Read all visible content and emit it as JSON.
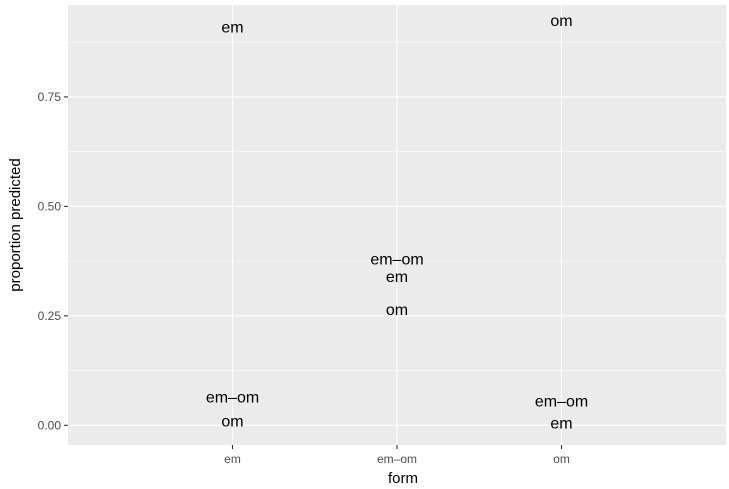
{
  "chart_data": {
    "type": "scatter",
    "xlabel": "form",
    "ylabel": "proportion predicted",
    "categories": [
      "em",
      "em–om",
      "om"
    ],
    "y_ticks": [
      0.0,
      0.25,
      0.5,
      0.75
    ],
    "y_tick_labels": [
      "0.00",
      "0.25",
      "0.50",
      "0.75"
    ],
    "ylim": [
      -0.045,
      0.96
    ],
    "grid": true,
    "points": [
      {
        "x": "em",
        "y": 0.91,
        "label": "em"
      },
      {
        "x": "em",
        "y": 0.065,
        "label": "em–om"
      },
      {
        "x": "em",
        "y": 0.01,
        "label": "om"
      },
      {
        "x": "em–om",
        "y": 0.38,
        "label": "em–om"
      },
      {
        "x": "em–om",
        "y": 0.34,
        "label": "em"
      },
      {
        "x": "em–om",
        "y": 0.265,
        "label": "om"
      },
      {
        "x": "om",
        "y": 0.925,
        "label": "om"
      },
      {
        "x": "om",
        "y": 0.055,
        "label": "em–om"
      },
      {
        "x": "om",
        "y": 0.005,
        "label": "em"
      }
    ]
  }
}
